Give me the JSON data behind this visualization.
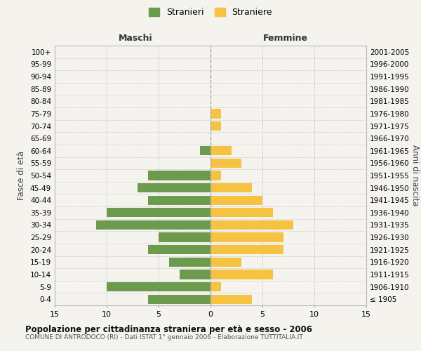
{
  "age_groups": [
    "100+",
    "95-99",
    "90-94",
    "85-89",
    "80-84",
    "75-79",
    "70-74",
    "65-69",
    "60-64",
    "55-59",
    "50-54",
    "45-49",
    "40-44",
    "35-39",
    "30-34",
    "25-29",
    "20-24",
    "15-19",
    "10-14",
    "5-9",
    "0-4"
  ],
  "birth_years": [
    "≤ 1905",
    "1906-1910",
    "1911-1915",
    "1916-1920",
    "1921-1925",
    "1926-1930",
    "1931-1935",
    "1936-1940",
    "1941-1945",
    "1946-1950",
    "1951-1955",
    "1956-1960",
    "1961-1965",
    "1966-1970",
    "1971-1975",
    "1976-1980",
    "1981-1985",
    "1986-1990",
    "1991-1995",
    "1996-2000",
    "2001-2005"
  ],
  "maschi": [
    0,
    0,
    0,
    0,
    0,
    0,
    0,
    0,
    1,
    0,
    6,
    7,
    6,
    10,
    11,
    5,
    6,
    4,
    3,
    10,
    6
  ],
  "femmine": [
    0,
    0,
    0,
    0,
    0,
    1,
    1,
    0,
    2,
    3,
    1,
    4,
    5,
    6,
    8,
    7,
    7,
    3,
    6,
    1,
    4
  ],
  "maschi_color": "#6d9b4e",
  "femmine_color": "#f5c242",
  "bg_color": "#f5f3ee",
  "grid_color": "#cccccc",
  "center_line_color": "#aaaaaa",
  "title": "Popolazione per cittadinanza straniera per età e sesso - 2006",
  "subtitle": "COMUNE DI ANTRODOCO (RI) - Dati ISTAT 1° gennaio 2006 - Elaborazione TUTTITALIA.IT",
  "xlabel_left": "Maschi",
  "xlabel_right": "Femmine",
  "ylabel_left": "Fasce di età",
  "ylabel_right": "Anni di nascita",
  "legend_maschi": "Stranieri",
  "legend_femmine": "Straniere",
  "xlim": 15,
  "xticks": [
    -15,
    -10,
    -5,
    0,
    5,
    10,
    15
  ]
}
